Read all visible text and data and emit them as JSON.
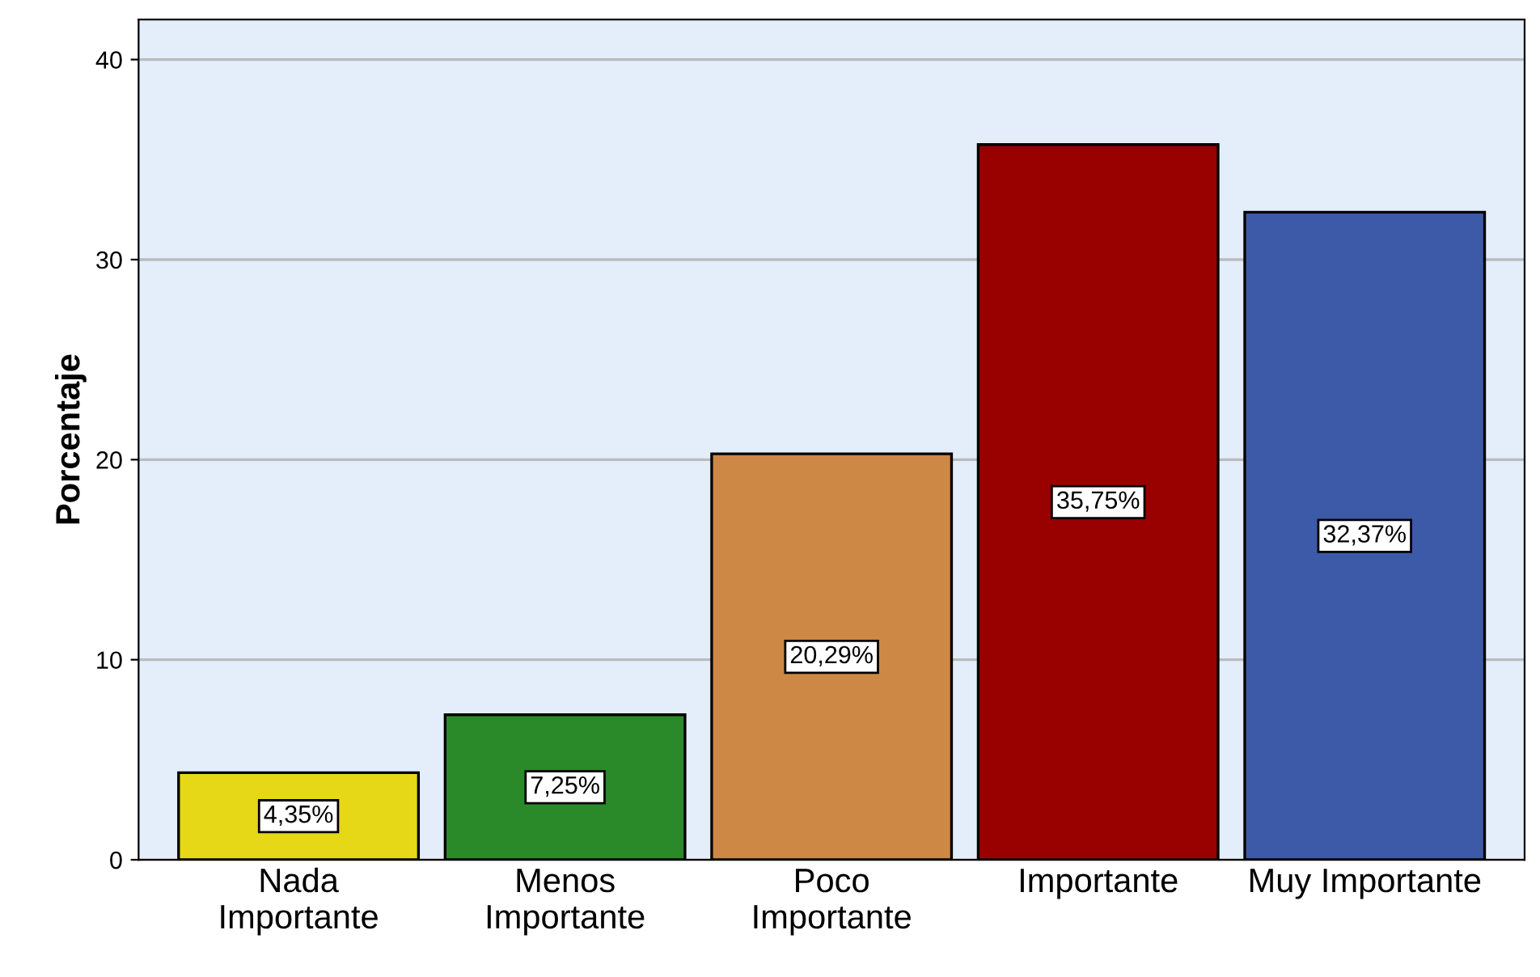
{
  "chart_data": {
    "type": "bar",
    "ylabel": "Porcentaje",
    "categories": [
      "Nada\nImportante",
      "Menos\nImportante",
      "Poco\nImportante",
      "Importante",
      "Muy Importante"
    ],
    "values": [
      4.35,
      7.25,
      20.29,
      35.75,
      32.37
    ],
    "value_labels": [
      "4,35%",
      "7,25%",
      "20,29%",
      "35,75%",
      "32,37%"
    ],
    "colors": [
      "#e6d817",
      "#2a8a2a",
      "#cc8844",
      "#990000",
      "#3d5aa8"
    ],
    "ylim": [
      0,
      42
    ],
    "yticks": [
      0,
      10,
      20,
      30,
      40
    ],
    "grid": "y"
  }
}
